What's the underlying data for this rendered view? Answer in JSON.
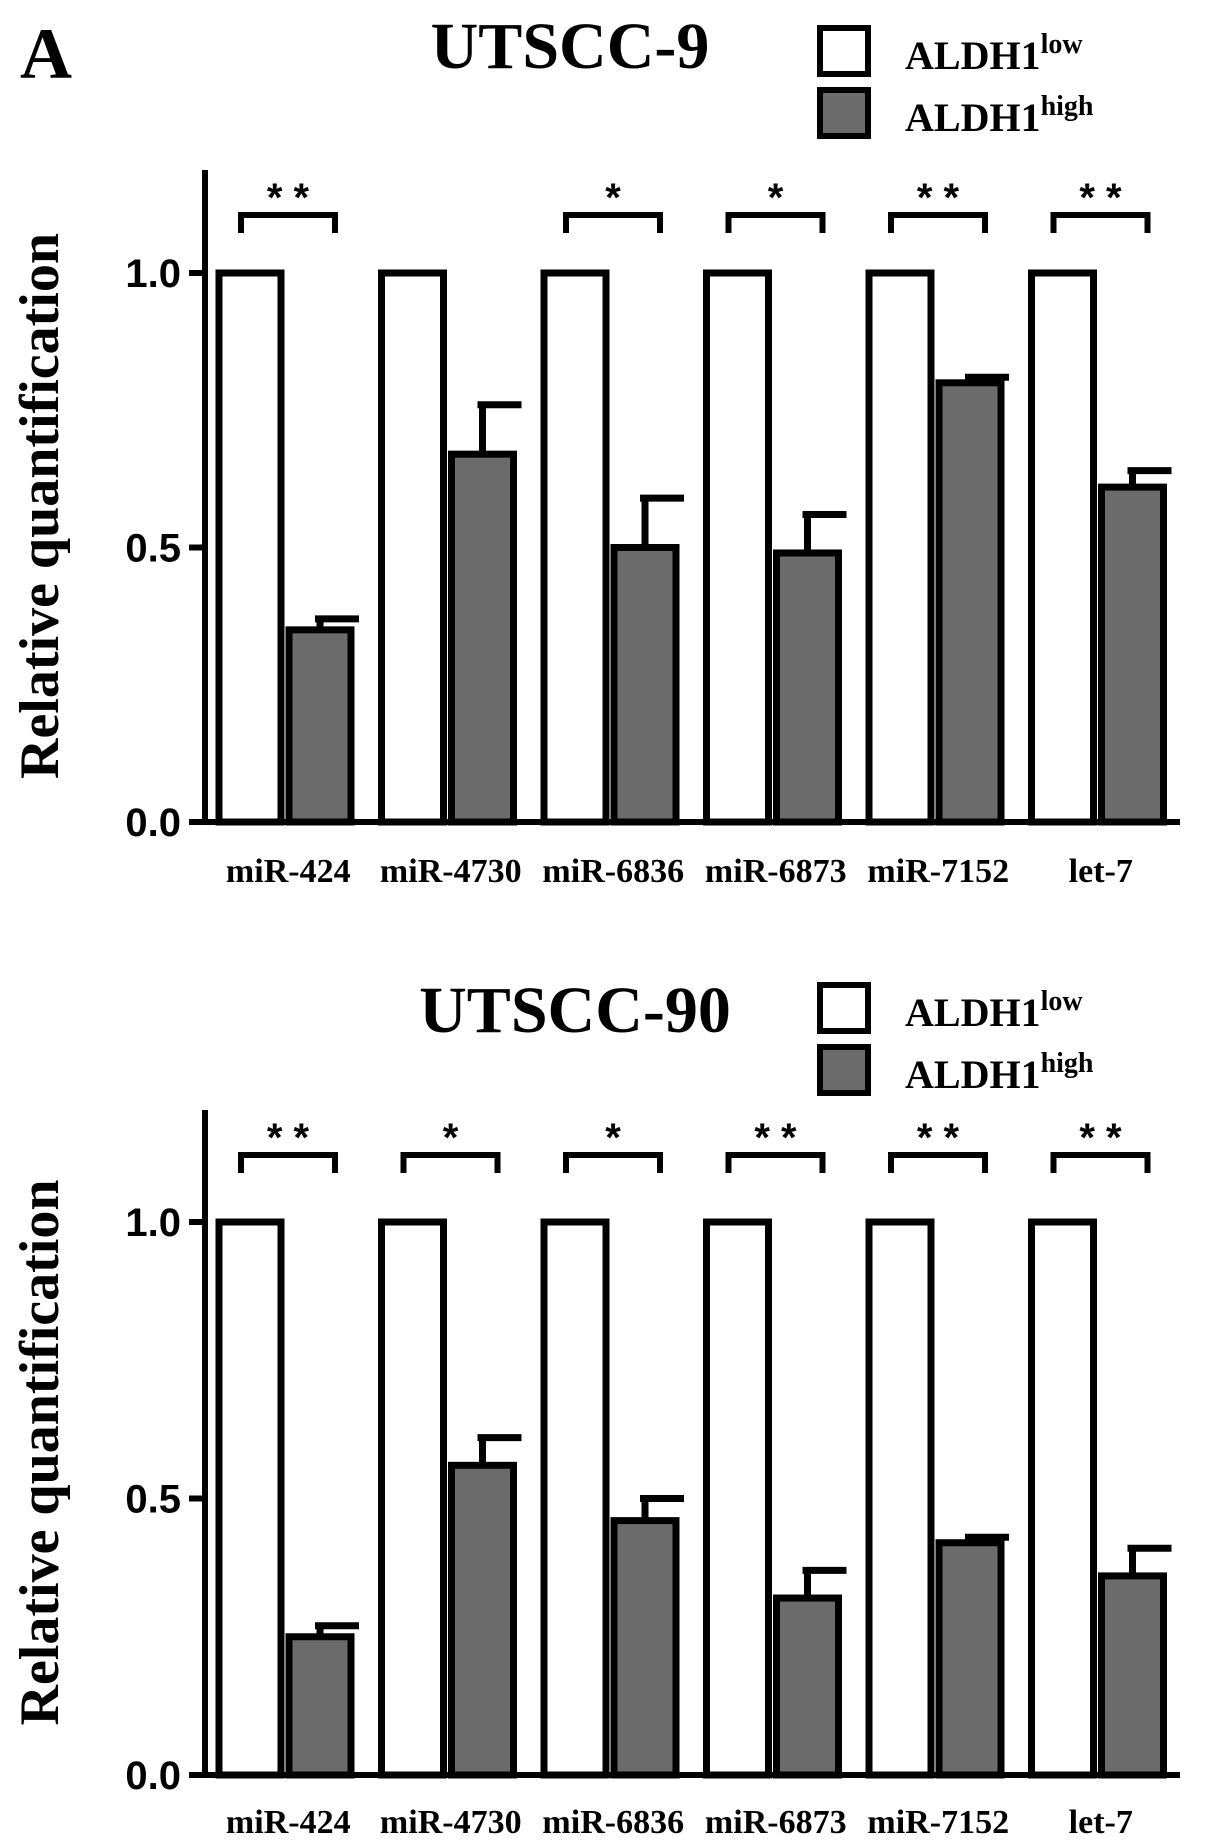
{
  "panel_letter": "A",
  "legend": {
    "items": [
      {
        "base": "ALDH1",
        "sup": "low",
        "color": "#ffffff"
      },
      {
        "base": "ALDH1",
        "sup": "high",
        "color": "#6b6b6b"
      }
    ]
  },
  "colors": {
    "low": "#ffffff",
    "high": "#6b6b6b",
    "stroke": "#000000"
  },
  "chart_data": [
    {
      "type": "bar",
      "title": "UTSCC-9",
      "ylabel": "Relative quantification",
      "ylim": [
        0,
        1.2
      ],
      "yticks": [
        "0.0",
        "0.5",
        "1.0"
      ],
      "categories": [
        "miR-424",
        "miR-4730",
        "miR-6836",
        "miR-6873",
        "miR-7152",
        "let-7"
      ],
      "series": [
        {
          "name": "ALDH1 low",
          "values": [
            1.0,
            1.0,
            1.0,
            1.0,
            1.0,
            1.0
          ]
        },
        {
          "name": "ALDH1 high",
          "values": [
            0.35,
            0.67,
            0.5,
            0.49,
            0.8,
            0.61
          ],
          "errors": [
            0.02,
            0.09,
            0.09,
            0.07,
            0.01,
            0.03
          ]
        }
      ],
      "significance": [
        "* *",
        "",
        "*",
        "*",
        "* *",
        "* *"
      ]
    },
    {
      "type": "bar",
      "title": "UTSCC-90",
      "ylabel": "Relative quantification",
      "ylim": [
        0,
        1.2
      ],
      "yticks": [
        "0.0",
        "0.5",
        "1.0"
      ],
      "categories": [
        "miR-424",
        "miR-4730",
        "miR-6836",
        "miR-6873",
        "miR-7152",
        "let-7"
      ],
      "series": [
        {
          "name": "ALDH1 low",
          "values": [
            1.0,
            1.0,
            1.0,
            1.0,
            1.0,
            1.0
          ]
        },
        {
          "name": "ALDH1 high",
          "values": [
            0.25,
            0.56,
            0.46,
            0.32,
            0.42,
            0.36
          ],
          "errors": [
            0.02,
            0.05,
            0.04,
            0.05,
            0.01,
            0.05
          ]
        }
      ],
      "significance": [
        "* *",
        "*",
        "*",
        "* *",
        "* *",
        "* *"
      ]
    }
  ]
}
